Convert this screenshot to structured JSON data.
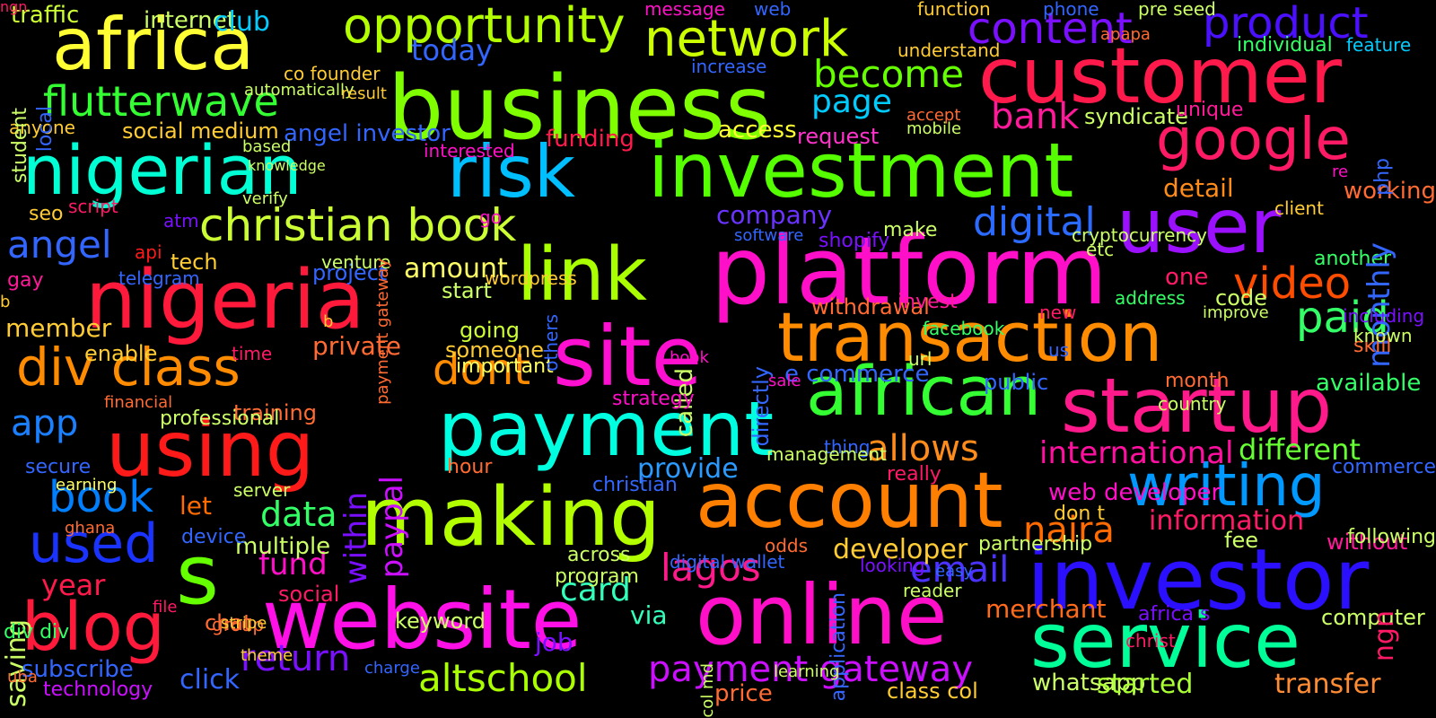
{
  "words": [
    {
      "text": "business",
      "color": "#7fff00"
    },
    {
      "text": "nigerian",
      "color": "#00ffd5"
    },
    {
      "text": "risk",
      "color": "#00bfff"
    },
    {
      "text": "investment",
      "color": "#55ff00"
    },
    {
      "text": "customer",
      "color": "#ff1a4b"
    },
    {
      "text": "platform",
      "color": "#ff10c8"
    },
    {
      "text": "africa",
      "color": "#ffff33"
    },
    {
      "text": "payment",
      "color": "#00ffe0"
    },
    {
      "text": "website",
      "color": "#ff10e6"
    },
    {
      "text": "online",
      "color": "#ff10c8"
    },
    {
      "text": "account",
      "color": "#ff7f00"
    },
    {
      "text": "nigeria",
      "color": "#ff1a3c"
    },
    {
      "text": "transaction",
      "color": "#ff8c00"
    },
    {
      "text": "site",
      "color": "#ff10d0"
    },
    {
      "text": "link",
      "color": "#aaff00"
    },
    {
      "text": "user",
      "color": "#9b10ff"
    },
    {
      "text": "startup",
      "color": "#ff1a8c"
    },
    {
      "text": "investor",
      "color": "#2b10ff"
    },
    {
      "text": "using",
      "color": "#ff1a1a"
    },
    {
      "text": "making",
      "color": "#b3ff00"
    },
    {
      "text": "service",
      "color": "#00ff99"
    },
    {
      "text": "network",
      "color": "#ccff00"
    },
    {
      "text": "google",
      "color": "#ff1a66"
    },
    {
      "text": "christian book",
      "color": "#ccff33"
    },
    {
      "text": "opportunity",
      "color": "#b3ff00"
    },
    {
      "text": "content",
      "color": "#7a10ff"
    },
    {
      "text": "product",
      "color": "#4b10ff"
    },
    {
      "text": "flutterwave",
      "color": "#33ff33"
    },
    {
      "text": "african",
      "color": "#33ff33"
    },
    {
      "text": "div class",
      "color": "#ff8c00"
    },
    {
      "text": "blog",
      "color": "#ff1a3c"
    },
    {
      "text": "writing",
      "color": "#0099ff"
    },
    {
      "text": "s",
      "color": "#66ff00"
    },
    {
      "text": "used",
      "color": "#1a33ff"
    },
    {
      "text": "video",
      "color": "#ff4d00"
    },
    {
      "text": "paid",
      "color": "#33ff66"
    },
    {
      "text": "dont",
      "color": "#ff8c00"
    },
    {
      "text": "become",
      "color": "#66ff00"
    },
    {
      "text": "digital",
      "color": "#2b6bff"
    },
    {
      "text": "allows",
      "color": "#ff8c1a"
    },
    {
      "text": "payment gateway",
      "color": "#cc10ff"
    },
    {
      "text": "altschool",
      "color": "#aaff00"
    },
    {
      "text": "lagos",
      "color": "#ff1a8c"
    },
    {
      "text": "naira",
      "color": "#ff6b00"
    },
    {
      "text": "email",
      "color": "#4b33ff"
    },
    {
      "text": "bank",
      "color": "#ff1a99"
    },
    {
      "text": "angel",
      "color": "#3366ff"
    },
    {
      "text": "app",
      "color": "#1a80ff"
    },
    {
      "text": "book",
      "color": "#0080ff"
    },
    {
      "text": "data",
      "color": "#33ff66"
    },
    {
      "text": "paypal",
      "color": "#cc10ff"
    },
    {
      "text": "within",
      "color": "#7a10ff"
    },
    {
      "text": "page",
      "color": "#00ccff"
    },
    {
      "text": "card",
      "color": "#33ffbb"
    },
    {
      "text": "return",
      "color": "#7a10ff"
    },
    {
      "text": "fund",
      "color": "#ff10c8"
    },
    {
      "text": "year",
      "color": "#ff1a4b"
    },
    {
      "text": "amount",
      "color": "#ffff66"
    },
    {
      "text": "click",
      "color": "#3366ff"
    },
    {
      "text": "today",
      "color": "#3366ff"
    },
    {
      "text": "provide",
      "color": "#2b9bff"
    },
    {
      "text": "international",
      "color": "#ff10a0"
    },
    {
      "text": "different",
      "color": "#66ff33"
    },
    {
      "text": "information",
      "color": "#ff1a66"
    },
    {
      "text": "developer",
      "color": "#ffcc33"
    },
    {
      "text": "merchant",
      "color": "#ff6b1a"
    },
    {
      "text": "whatsapp",
      "color": "#ccff66"
    },
    {
      "text": "started",
      "color": "#aaff33"
    },
    {
      "text": "transfer",
      "color": "#ff8c33"
    },
    {
      "text": "detail",
      "color": "#ff8c1a"
    },
    {
      "text": "company",
      "color": "#6b33ff"
    },
    {
      "text": "angel investor",
      "color": "#3366ff"
    },
    {
      "text": "social medium",
      "color": "#ffcc33"
    },
    {
      "text": "internet",
      "color": "#ccff66"
    },
    {
      "text": "club",
      "color": "#00ccff"
    },
    {
      "text": "traffic",
      "color": "#ccff33"
    },
    {
      "text": "access",
      "color": "#ffff33"
    },
    {
      "text": "request",
      "color": "#ff33cc"
    },
    {
      "text": "syndicate",
      "color": "#ccff66"
    },
    {
      "text": "unique",
      "color": "#ff1a99"
    },
    {
      "text": "individual",
      "color": "#33ff66"
    },
    {
      "text": "feature",
      "color": "#00ccff"
    },
    {
      "text": "funding",
      "color": "#ff1a4b"
    },
    {
      "text": "start",
      "color": "#ccff66"
    },
    {
      "text": "going",
      "color": "#ccff33"
    },
    {
      "text": "someone",
      "color": "#ffcc33"
    },
    {
      "text": "important",
      "color": "#ffff66"
    },
    {
      "text": "enable",
      "color": "#ffcc33"
    },
    {
      "text": "member",
      "color": "#ffcc33"
    },
    {
      "text": "tech",
      "color": "#ffcc33"
    },
    {
      "text": "project",
      "color": "#3366ff"
    },
    {
      "text": "time",
      "color": "#ff1a66"
    },
    {
      "text": "training",
      "color": "#ff6b33"
    },
    {
      "text": "multiple",
      "color": "#ccff66"
    },
    {
      "text": "social",
      "color": "#ff1a66"
    },
    {
      "text": "keyword",
      "color": "#ccff66"
    },
    {
      "text": "chat",
      "color": "#ff6b33"
    },
    {
      "text": "let",
      "color": "#ff6b00"
    },
    {
      "text": "job",
      "color": "#7a10ff"
    },
    {
      "text": "via",
      "color": "#33ffbb"
    },
    {
      "text": "price",
      "color": "#ff6b33"
    },
    {
      "text": "class col",
      "color": "#ffcc33"
    },
    {
      "text": "africa s",
      "color": "#7a10ff"
    },
    {
      "text": "computer",
      "color": "#ccff66"
    },
    {
      "text": "without",
      "color": "#ff1a99"
    },
    {
      "text": "one",
      "color": "#ff1a66"
    },
    {
      "text": "code",
      "color": "#ccff66"
    },
    {
      "text": "new",
      "color": "#ff1a66"
    },
    {
      "text": "facebook",
      "color": "#33ff66"
    },
    {
      "text": "withdrawal",
      "color": "#ff6b33"
    },
    {
      "text": "e commerce",
      "color": "#3366ff"
    },
    {
      "text": "public",
      "color": "#3366ff"
    },
    {
      "text": "month",
      "color": "#ff6b33"
    },
    {
      "text": "available",
      "color": "#33ff66"
    },
    {
      "text": "another",
      "color": "#33ff66"
    },
    {
      "text": "working",
      "color": "#ff6b33"
    },
    {
      "text": "re",
      "color": "#ff10c8"
    },
    {
      "text": "client",
      "color": "#ffcc33"
    },
    {
      "text": "monthly",
      "color": "#3366ff"
    },
    {
      "text": "php",
      "color": "#3366ff"
    },
    {
      "text": "shopify",
      "color": "#7a10ff"
    },
    {
      "text": "make",
      "color": "#ccff66"
    },
    {
      "text": "really",
      "color": "#ff1a66"
    },
    {
      "text": "web developer",
      "color": "#ff10c8"
    },
    {
      "text": "don t",
      "color": "#ffcc33"
    },
    {
      "text": "directly",
      "color": "#3366ff"
    },
    {
      "text": "thing",
      "color": "#3366ff"
    },
    {
      "text": "called",
      "color": "#ccff66"
    },
    {
      "text": "invest",
      "color": "#ff1a99"
    },
    {
      "text": "gay",
      "color": "#ff1a99"
    },
    {
      "text": "seo",
      "color": "#ffcc33"
    },
    {
      "text": "api",
      "color": "#ff1a1a"
    },
    {
      "text": "atm",
      "color": "#7a10ff"
    },
    {
      "text": "script",
      "color": "#ff1a66"
    },
    {
      "text": "verify",
      "color": "#ccff66"
    },
    {
      "text": "knowledge",
      "color": "#ccff66"
    },
    {
      "text": "anyone",
      "color": "#ffcc33"
    },
    {
      "text": "student",
      "color": "#ccff66"
    },
    {
      "text": "local",
      "color": "#3366ff"
    },
    {
      "text": "saving",
      "color": "#ccff66"
    },
    {
      "text": "technology",
      "color": "#cc10ff"
    },
    {
      "text": "subscribe",
      "color": "#3366ff"
    },
    {
      "text": "div div",
      "color": "#33ff66"
    },
    {
      "text": "group",
      "color": "#ff6b33"
    },
    {
      "text": "secure",
      "color": "#3366ff"
    },
    {
      "text": "earning",
      "color": "#ffff66"
    },
    {
      "text": "professional",
      "color": "#ccff66"
    },
    {
      "text": "device",
      "color": "#3366ff"
    },
    {
      "text": "across",
      "color": "#ccff66"
    },
    {
      "text": "program",
      "color": "#ccff66"
    },
    {
      "text": "christian",
      "color": "#3366ff"
    },
    {
      "text": "hour",
      "color": "#ff6b33"
    },
    {
      "text": "strategy",
      "color": "#ff10c8"
    },
    {
      "text": "management",
      "color": "#ccff66"
    },
    {
      "text": "odds",
      "color": "#ff6b33"
    },
    {
      "text": "application",
      "color": "#3366ff"
    },
    {
      "text": "looking",
      "color": "#7a10ff"
    },
    {
      "text": "url",
      "color": "#ccff66"
    },
    {
      "text": "partnership",
      "color": "#ccff66"
    },
    {
      "text": "skill",
      "color": "#ff6b33"
    },
    {
      "text": "ngn",
      "color": "#ff1a66"
    },
    {
      "text": "commerce",
      "color": "#3366ff"
    },
    {
      "text": "following",
      "color": "#ccff66"
    },
    {
      "text": "known",
      "color": "#ccff66"
    },
    {
      "text": "fee",
      "color": "#ccff66"
    },
    {
      "text": "pre seed",
      "color": "#ccff66"
    },
    {
      "text": "phone",
      "color": "#3366ff"
    },
    {
      "text": "function",
      "color": "#ffcc33"
    },
    {
      "text": "understand",
      "color": "#ffcc33"
    },
    {
      "text": "message",
      "color": "#ff10c8"
    },
    {
      "text": "increase",
      "color": "#3366ff"
    },
    {
      "text": "interested",
      "color": "#ff10c8"
    },
    {
      "text": "go",
      "color": "#ff10c8"
    },
    {
      "text": "web",
      "color": "#3366ff"
    },
    {
      "text": "automatically",
      "color": "#ccff66"
    },
    {
      "text": "co founder",
      "color": "#ffcc33"
    },
    {
      "text": "result",
      "color": "#ffcc33"
    },
    {
      "text": "based",
      "color": "#ccff66"
    },
    {
      "text": "apapa",
      "color": "#ff6b33"
    },
    {
      "text": "mobile",
      "color": "#ccff66"
    },
    {
      "text": "accept",
      "color": "#ff6b33"
    },
    {
      "text": "private",
      "color": "#ff6b33"
    },
    {
      "text": "b",
      "color": "#ffcc33"
    },
    {
      "text": "b",
      "color": "#ffcc33"
    },
    {
      "text": "telegram",
      "color": "#3366ff"
    },
    {
      "text": "venture",
      "color": "#ccff66"
    },
    {
      "text": "software",
      "color": "#3366ff"
    },
    {
      "text": "etc",
      "color": "#ccff66"
    },
    {
      "text": "address",
      "color": "#33ff66"
    },
    {
      "text": "improve",
      "color": "#ccff66"
    },
    {
      "text": "including",
      "color": "#7a10ff"
    },
    {
      "text": "others",
      "color": "#3366ff"
    },
    {
      "text": "col md",
      "color": "#ccff66"
    },
    {
      "text": "wordpress",
      "color": "#ffcc33"
    },
    {
      "text": "us",
      "color": "#3366ff"
    },
    {
      "text": "easy",
      "color": "#3366ff"
    },
    {
      "text": "christ",
      "color": "#ff1a66"
    },
    {
      "text": "cryptocurrency",
      "color": "#ccff66"
    },
    {
      "text": "book",
      "color": "#ff10c8"
    },
    {
      "text": "uba",
      "color": "#ff6b33"
    },
    {
      "text": "ghana",
      "color": "#ff6b33"
    },
    {
      "text": "financial",
      "color": "#ff6b33"
    },
    {
      "text": "server",
      "color": "#ccff66"
    },
    {
      "text": "learning",
      "color": "#ccff66"
    },
    {
      "text": "reader",
      "color": "#ccff66"
    },
    {
      "text": "digital wallet",
      "color": "#3366ff"
    },
    {
      "text": "payment gateway",
      "color": "#ff6b33"
    },
    {
      "text": "sale",
      "color": "#ff10c8"
    },
    {
      "text": "charge",
      "color": "#3366ff"
    },
    {
      "text": "stripe",
      "color": "#ffcc33"
    },
    {
      "text": "file",
      "color": "#ff1a66"
    },
    {
      "text": "theme",
      "color": "#ffcc33"
    },
    {
      "text": "country",
      "color": "#ccff66"
    },
    {
      "text": "ngn",
      "color": "#ff1a66"
    }
  ]
}
